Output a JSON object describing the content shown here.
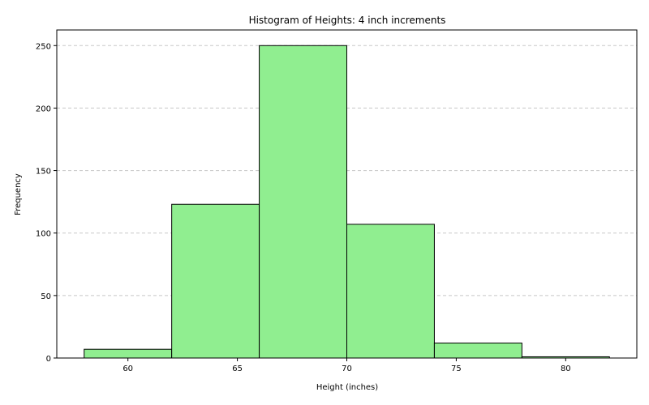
{
  "chart_data": {
    "type": "bar",
    "title": "Histogram of Heights: 4 inch increments",
    "xlabel": "Height (inches)",
    "ylabel": "Frequency",
    "bins": [
      {
        "start": 58,
        "end": 62,
        "value": 7
      },
      {
        "start": 62,
        "end": 66,
        "value": 123
      },
      {
        "start": 66,
        "end": 70,
        "value": 250
      },
      {
        "start": 70,
        "end": 74,
        "value": 107
      },
      {
        "start": 74,
        "end": 78,
        "value": 12
      },
      {
        "start": 78,
        "end": 82,
        "value": 1
      }
    ],
    "xlim": [
      56.75,
      83.25
    ],
    "ylim": [
      0,
      262.5
    ],
    "xticks": [
      60,
      65,
      70,
      75,
      80
    ],
    "yticks": [
      0,
      50,
      100,
      150,
      200,
      250
    ],
    "grid": "y-dashed",
    "bar_color": "#90ee90",
    "edge_color": "#000000",
    "grid_color": "#c8c8c8"
  }
}
